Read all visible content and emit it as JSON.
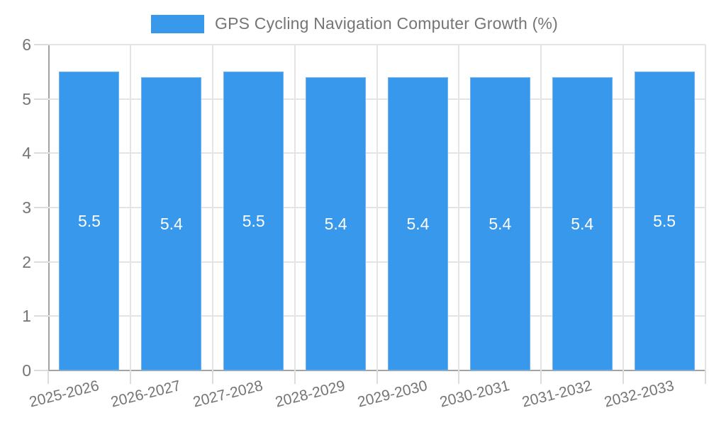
{
  "chart_data": {
    "type": "bar",
    "title": "GPS Cycling Navigation Computer Growth (%)",
    "legend": [
      {
        "label": "GPS Cycling Navigation Computer Growth (%)",
        "color": "#3899EC"
      }
    ],
    "legend_position": "top-center",
    "categories": [
      "2025-2026",
      "2026-2027",
      "2027-2028",
      "2028-2029",
      "2029-2030",
      "2030-2031",
      "2031-2032",
      "2032-2033"
    ],
    "series": [
      {
        "name": "GPS Cycling Navigation Computer Growth (%)",
        "values": [
          5.5,
          5.4,
          5.5,
          5.4,
          5.4,
          5.4,
          5.4,
          5.5
        ]
      }
    ],
    "bar_value_labels": [
      "5.5",
      "5.4",
      "5.5",
      "5.4",
      "5.4",
      "5.4",
      "5.4",
      "5.5"
    ],
    "xlabel": "",
    "ylabel": "",
    "ylim": [
      0,
      6
    ],
    "yticks": [
      0,
      1,
      2,
      3,
      4,
      5,
      6
    ],
    "grid": true,
    "colors": {
      "bar": "#3899EC",
      "bar_border": "#6fb4f1",
      "bar_label": "#FFFFFF",
      "axis_text": "#757575",
      "gridline": "#E4E4E4",
      "tick": "#DCDCDC",
      "axis_line": "#A3A3A3",
      "background": "#FFFFFF"
    }
  }
}
